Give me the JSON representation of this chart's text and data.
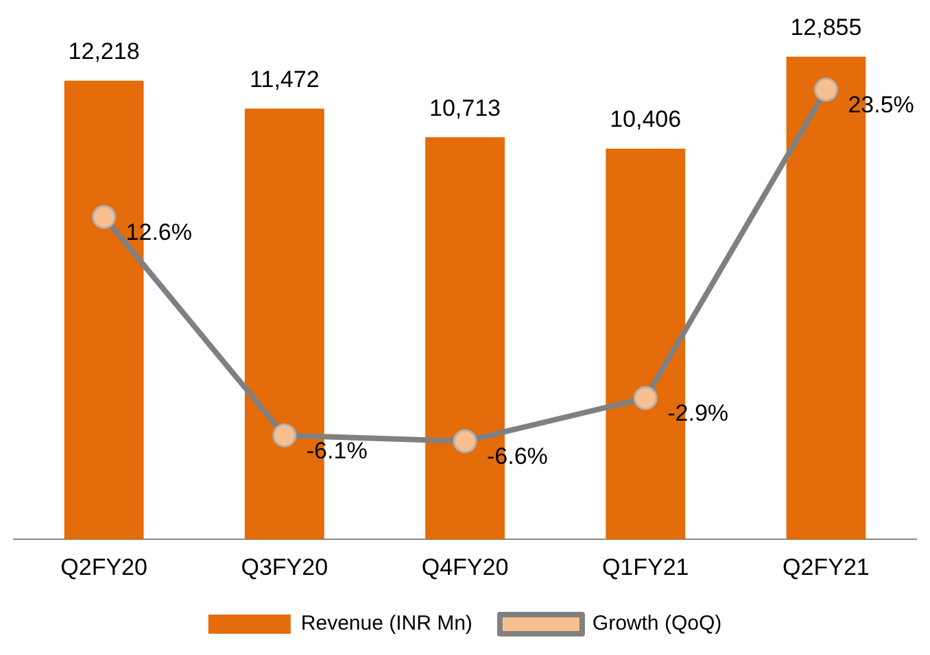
{
  "chart_data": {
    "type": "bar",
    "categories": [
      "Q2FY20",
      "Q3FY20",
      "Q4FY20",
      "Q1FY21",
      "Q2FY21"
    ],
    "series": [
      {
        "name": "Revenue (INR Mn)",
        "color": "#e46c0a",
        "values": [
          12218,
          11472,
          10713,
          10406,
          12855
        ],
        "value_labels": [
          "12,218",
          "11,472",
          "10,713",
          "10,406",
          "12,855"
        ]
      },
      {
        "name": "Growth (QoQ)",
        "type": "line",
        "axis": "y2",
        "color": "#808080",
        "values": [
          12.6,
          -6.1,
          -6.6,
          -2.9,
          23.5
        ],
        "value_labels": [
          "12.6%",
          "-6.1%",
          "-6.6%",
          "-2.9%",
          "23.5%"
        ]
      }
    ],
    "tick_labels": "x",
    "grid": false,
    "legend": "bottom",
    "marker": "circle",
    "line_style": "solid"
  }
}
